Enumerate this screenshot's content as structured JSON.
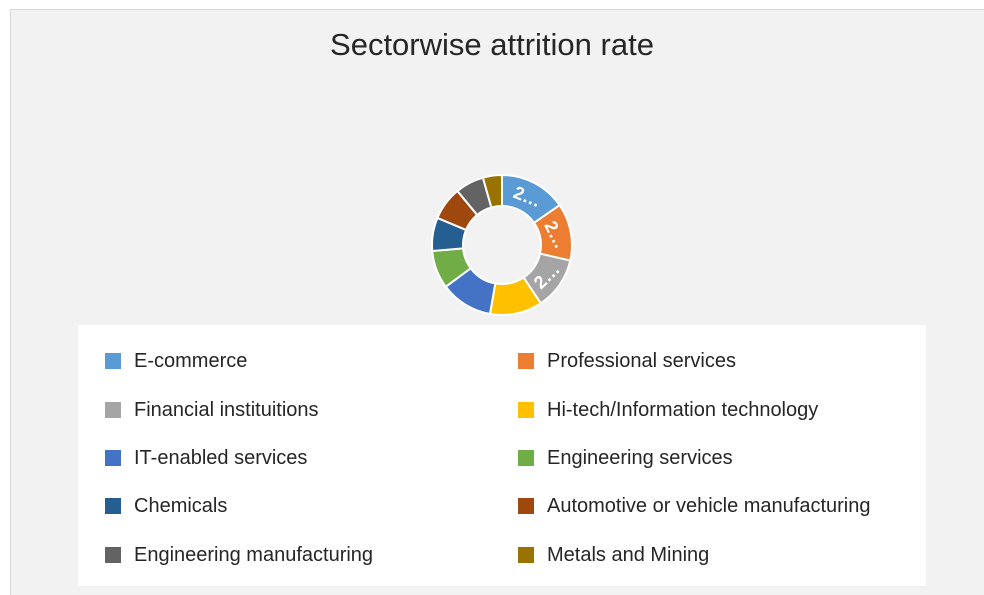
{
  "chart_data": {
    "type": "pie",
    "variant": "donut",
    "title": "Sectorwise attrition rate",
    "categories": [
      "E-commerce",
      "Professional services",
      "Financial instituitions",
      "Hi-tech/Information technology",
      "IT-enabled services",
      "Engineering services",
      "Chemicals",
      "Automotive or vehicle manufacturing",
      "Engineering manufacturing",
      "Metals and Mining"
    ],
    "values": [
      14,
      12,
      11,
      11,
      11,
      8,
      7,
      7,
      6,
      4
    ],
    "colors": [
      "#5b9bd5",
      "#ed7d31",
      "#a5a5a5",
      "#ffc000",
      "#4472c4",
      "#70ad47",
      "#255e91",
      "#9e480e",
      "#636363",
      "#997300"
    ],
    "data_labels": [
      "2…",
      "2…",
      "2…",
      "",
      "",
      "",
      "",
      "",
      "",
      ""
    ],
    "legend_position": "bottom"
  }
}
